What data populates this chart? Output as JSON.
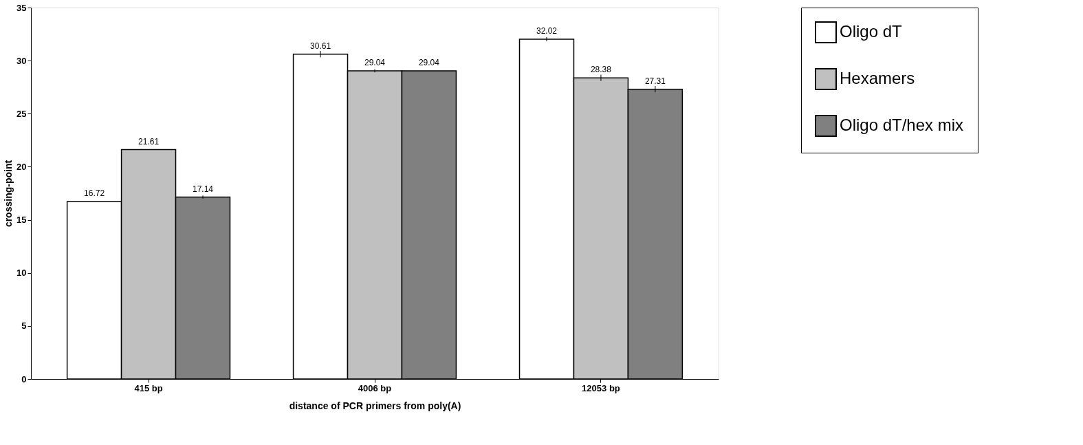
{
  "chart_data": {
    "type": "bar",
    "xlabel": "distance of PCR primers from poly(A)",
    "ylabel": "crossing-point",
    "categories": [
      "415 bp",
      "4006 bp",
      "12053 bp"
    ],
    "series": [
      {
        "name": "Oligo dT",
        "color": "#ffffff",
        "values": [
          16.72,
          30.61,
          32.02
        ],
        "errors": [
          null,
          0.3,
          0.2
        ]
      },
      {
        "name": "Hexamers",
        "color": "#c0c0c0",
        "values": [
          21.61,
          29.04,
          28.38
        ],
        "errors": [
          null,
          0.15,
          0.3
        ]
      },
      {
        "name": "Oligo dT/hex mix",
        "color": "#808080",
        "values": [
          17.14,
          29.04,
          27.31
        ],
        "errors": [
          0.15,
          null,
          0.3
        ]
      }
    ],
    "ylim": [
      0,
      35
    ],
    "yticks": [
      0,
      5,
      10,
      15,
      20,
      25,
      30,
      35
    ],
    "grid": false,
    "legend": "right",
    "data_labels": true
  }
}
